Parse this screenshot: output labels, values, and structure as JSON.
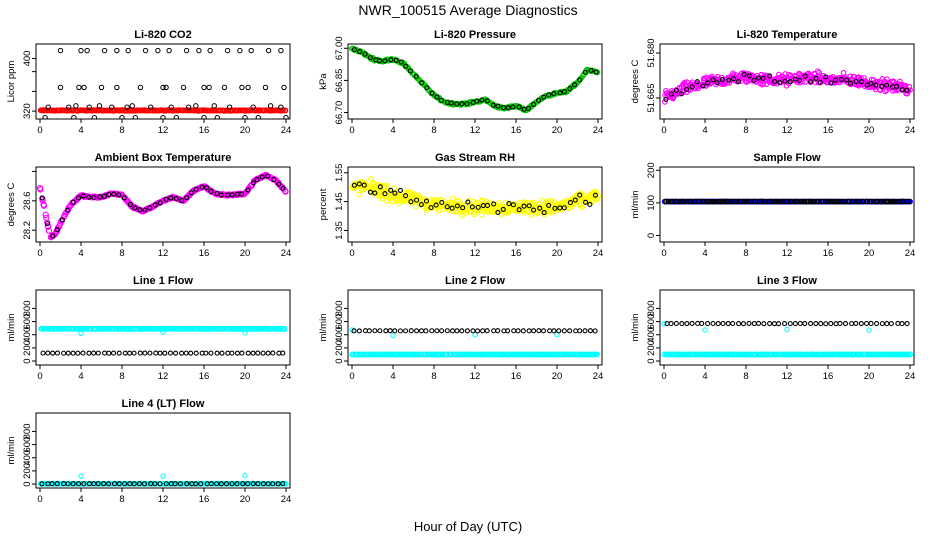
{
  "figure": {
    "title": "NWR_100515  Average Diagnostics",
    "xlabel": "Hour of Day (UTC)"
  },
  "colors": {
    "black": "#000000",
    "red": "#ff0000",
    "green": "#00cc00",
    "magenta": "#ff00ff",
    "yellow": "#ffff00",
    "cyan": "#00ffff",
    "blue": "#0000ff"
  },
  "chart_data": [
    {
      "id": "co2",
      "type": "scatter",
      "title": "Li-820 CO2",
      "ylabel": "Licor ppm",
      "xlim": [
        0,
        24
      ],
      "ylim": [
        308,
        422
      ],
      "yticks": [
        320,
        350,
        380,
        400
      ],
      "ytick_labels": [
        "320",
        "",
        "",
        "400"
      ],
      "xticks": [
        0,
        4,
        8,
        12,
        16,
        20,
        24
      ],
      "series": [
        {
          "color": "red",
          "kind": "dense",
          "base": 321,
          "noise": 1.0,
          "n": 260,
          "size": 2.3
        },
        {
          "color": "black",
          "kind": "points",
          "x": [
            0.5,
            2.0,
            3.3,
            4.0,
            4.6,
            5.3,
            6.3,
            7.5,
            8.0,
            8.6,
            9.3,
            10.3,
            11.5,
            12.0,
            12.6,
            13.3,
            14.3,
            15.5,
            16.0,
            16.6,
            17.3,
            18.3,
            19.5,
            20.0,
            20.6,
            21.3,
            22.3,
            23.5,
            24.0,
            2.0,
            3.8,
            4.3,
            6.0,
            7.5,
            9.8,
            12.0,
            12.3,
            14.0,
            16.0,
            16.5,
            18.0,
            19.7,
            20.3,
            22.0,
            23.8,
            0.8,
            2.8,
            3.5,
            4.8,
            5.8,
            7.0,
            8.5,
            9.0,
            10.8,
            12.8,
            14.5,
            15.2,
            17.0,
            18.5,
            20.8,
            22.5,
            23.5
          ],
          "y": [
            310,
            412,
            310,
            412,
            412,
            310,
            412,
            412,
            310,
            412,
            310,
            412,
            412,
            310,
            412,
            310,
            412,
            412,
            310,
            412,
            310,
            412,
            412,
            310,
            412,
            310,
            412,
            412,
            310,
            356,
            356,
            356,
            356,
            356,
            356,
            356,
            356,
            356,
            356,
            356,
            356,
            356,
            356,
            356,
            356,
            326,
            326,
            328,
            326,
            328,
            326,
            326,
            328,
            326,
            326,
            326,
            328,
            328,
            326,
            326,
            328,
            326
          ]
        }
      ]
    },
    {
      "id": "pressure",
      "type": "scatter",
      "title": "Li-820 Pressure",
      "ylabel": "kPa",
      "xlim": [
        0,
        24
      ],
      "ylim": [
        66.67,
        67.02
      ],
      "yticks": [
        66.7,
        66.85,
        67.0
      ],
      "ytick_labels": [
        "66.70",
        "66.85",
        "67.00"
      ],
      "xticks": [
        0,
        4,
        8,
        12,
        16,
        20,
        24
      ],
      "series": [
        {
          "color": "green",
          "kind": "curve",
          "noise": 0.007,
          "n": 300,
          "size": 2.3,
          "x": [
            0,
            1,
            2,
            3,
            4,
            5,
            6,
            7,
            8,
            9,
            10,
            11,
            12,
            13,
            14,
            15,
            16,
            17,
            18,
            19,
            20,
            21,
            22,
            23,
            23.8
          ],
          "y": [
            67.0,
            66.98,
            66.95,
            66.94,
            66.95,
            66.93,
            66.88,
            66.83,
            66.78,
            66.75,
            66.74,
            66.74,
            66.75,
            66.76,
            66.73,
            66.72,
            66.73,
            66.71,
            66.75,
            66.78,
            66.79,
            66.8,
            66.84,
            66.9,
            66.89
          ]
        },
        {
          "color": "black",
          "kind": "curve",
          "noise": 0.004,
          "n": 48,
          "size": 2.0,
          "x": [
            0,
            1,
            2,
            3,
            4,
            5,
            6,
            7,
            8,
            9,
            10,
            11,
            12,
            13,
            14,
            15,
            16,
            17,
            18,
            19,
            20,
            21,
            22,
            23,
            23.8
          ],
          "y": [
            67.0,
            66.98,
            66.95,
            66.94,
            66.95,
            66.93,
            66.88,
            66.83,
            66.78,
            66.75,
            66.74,
            66.74,
            66.75,
            66.76,
            66.73,
            66.72,
            66.73,
            66.71,
            66.75,
            66.78,
            66.79,
            66.8,
            66.84,
            66.9,
            66.89
          ]
        }
      ]
    },
    {
      "id": "temp",
      "type": "scatter",
      "title": "Li-820 Temperature",
      "ylabel": "degrees C",
      "xlim": [
        0,
        24
      ],
      "ylim": [
        51.658,
        51.683
      ],
      "yticks": [
        51.665,
        51.68
      ],
      "ytick_labels": [
        "51.665",
        "51.680"
      ],
      "xticks": [
        0,
        4,
        8,
        12,
        16,
        20,
        24
      ],
      "series": [
        {
          "color": "magenta",
          "kind": "curve",
          "noise": 0.0028,
          "n": 420,
          "size": 2.3,
          "x": [
            0,
            2,
            4,
            6,
            8,
            10,
            12,
            14,
            16,
            18,
            20,
            22,
            24
          ],
          "y": [
            51.665,
            51.668,
            51.67,
            51.671,
            51.672,
            51.671,
            51.671,
            51.672,
            51.671,
            51.671,
            51.67,
            51.669,
            51.668
          ]
        },
        {
          "color": "black",
          "kind": "curve",
          "noise": 0.0022,
          "n": 48,
          "size": 2.0,
          "x": [
            0,
            2,
            4,
            6,
            8,
            10,
            12,
            14,
            16,
            18,
            20,
            22,
            24
          ],
          "y": [
            51.665,
            51.668,
            51.67,
            51.671,
            51.672,
            51.671,
            51.671,
            51.672,
            51.671,
            51.671,
            51.67,
            51.669,
            51.668
          ]
        }
      ]
    },
    {
      "id": "boxtemp",
      "type": "scatter",
      "title": "Ambient Box Temperature",
      "ylabel": "degrees C",
      "xlim": [
        0,
        24
      ],
      "ylim": [
        28.04,
        29.06
      ],
      "yticks": [
        28.2,
        28.6,
        29.0
      ],
      "ytick_labels": [
        "28.2",
        "28.6",
        ""
      ],
      "xticks": [
        0,
        4,
        8,
        12,
        16,
        20,
        24
      ],
      "series": [
        {
          "color": "magenta",
          "kind": "curve",
          "noise": 0.012,
          "n": 300,
          "size": 2.6,
          "x": [
            0,
            0.5,
            1,
            1.5,
            2,
            3,
            4,
            5,
            6,
            7,
            8,
            9,
            10,
            11,
            12,
            13,
            14,
            15,
            16,
            17,
            18,
            19,
            20,
            21,
            22,
            23,
            24
          ],
          "y": [
            28.78,
            28.45,
            28.1,
            28.15,
            28.3,
            28.55,
            28.67,
            28.65,
            28.65,
            28.7,
            28.68,
            28.52,
            28.46,
            28.52,
            28.6,
            28.65,
            28.6,
            28.74,
            28.8,
            28.7,
            28.68,
            28.68,
            28.7,
            28.88,
            28.95,
            28.88,
            28.72
          ]
        },
        {
          "color": "black",
          "kind": "curve",
          "noise": 0.01,
          "n": 48,
          "size": 2.0,
          "x": [
            0,
            0.5,
            1,
            1.5,
            2,
            3,
            4,
            5,
            6,
            7,
            8,
            9,
            10,
            11,
            12,
            13,
            14,
            15,
            16,
            17,
            18,
            19,
            20,
            21,
            22,
            23,
            24
          ],
          "y": [
            28.78,
            28.45,
            28.1,
            28.15,
            28.3,
            28.55,
            28.67,
            28.65,
            28.65,
            28.7,
            28.68,
            28.52,
            28.46,
            28.52,
            28.6,
            28.65,
            28.6,
            28.74,
            28.8,
            28.7,
            28.68,
            28.68,
            28.7,
            28.88,
            28.95,
            28.88,
            28.72
          ]
        }
      ]
    },
    {
      "id": "rh",
      "type": "scatter",
      "title": "Gas Stream RH",
      "ylabel": "percent",
      "xlim": [
        0,
        24
      ],
      "ylim": [
        1.31,
        1.57
      ],
      "yticks": [
        1.35,
        1.45,
        1.55
      ],
      "ytick_labels": [
        "1.35",
        "1.45",
        "1.55"
      ],
      "xticks": [
        0,
        4,
        8,
        12,
        16,
        20,
        24
      ],
      "series": [
        {
          "color": "yellow",
          "kind": "curve",
          "noise": 0.035,
          "n": 480,
          "size": 2.3,
          "x": [
            0,
            2,
            4,
            8,
            12,
            16,
            20,
            24
          ],
          "y": [
            1.5,
            1.5,
            1.47,
            1.44,
            1.43,
            1.43,
            1.43,
            1.47
          ]
        },
        {
          "color": "black",
          "kind": "curve",
          "noise": 0.028,
          "n": 48,
          "size": 2.0,
          "x": [
            0,
            2,
            4,
            8,
            12,
            16,
            20,
            24
          ],
          "y": [
            1.5,
            1.5,
            1.47,
            1.44,
            1.43,
            1.43,
            1.43,
            1.47
          ]
        }
      ]
    },
    {
      "id": "sample",
      "type": "scatter",
      "title": "Sample Flow",
      "ylabel": "ml/min",
      "xlim": [
        0,
        24
      ],
      "ylim": [
        -20,
        210
      ],
      "yticks": [
        0,
        100,
        200
      ],
      "ytick_labels": [
        "0",
        "100",
        "200"
      ],
      "xticks": [
        0,
        4,
        8,
        12,
        16,
        20,
        24
      ],
      "series": [
        {
          "color": "blue",
          "kind": "dense",
          "base": 104,
          "noise": 0.5,
          "n": 240,
          "size": 2.3
        },
        {
          "color": "black",
          "kind": "dense",
          "base": 104,
          "noise": 0.5,
          "n": 120,
          "size": 2.2
        }
      ]
    },
    {
      "id": "line1",
      "type": "scatter",
      "title": "Line 1 Flow",
      "ylabel": "ml/min",
      "xlim": [
        0,
        24
      ],
      "ylim": [
        -60,
        1080
      ],
      "yticks": [
        0,
        200,
        400,
        600,
        800
      ],
      "ytick_labels": [
        "0",
        "200",
        "400",
        "600",
        "800"
      ],
      "xticks": [
        0,
        4,
        8,
        12,
        16,
        20,
        24
      ],
      "series": [
        {
          "color": "cyan",
          "kind": "dense",
          "base": 490,
          "noise": 5,
          "n": 240,
          "size": 2.3
        },
        {
          "color": "cyan",
          "kind": "points",
          "x": [
            4,
            12,
            20
          ],
          "y": [
            420,
            440,
            430
          ]
        },
        {
          "color": "black",
          "kind": "dense",
          "base": 120,
          "noise": 2,
          "n": 48,
          "size": 2.0
        }
      ]
    },
    {
      "id": "line2",
      "type": "scatter",
      "title": "Line 2 Flow",
      "ylabel": "ml/min",
      "xlim": [
        0,
        24
      ],
      "ylim": [
        -60,
        1080
      ],
      "yticks": [
        0,
        200,
        400,
        600,
        800
      ],
      "ytick_labels": [
        "0",
        "200",
        "400",
        "600",
        "800"
      ],
      "xticks": [
        0,
        4,
        8,
        12,
        16,
        20,
        24
      ],
      "series": [
        {
          "color": "cyan",
          "kind": "dense",
          "base": 100,
          "noise": 2,
          "n": 240,
          "size": 2.3
        },
        {
          "color": "cyan",
          "kind": "points",
          "x": [
            0,
            4,
            12,
            20
          ],
          "y": [
            470,
            390,
            400,
            400
          ]
        },
        {
          "color": "black",
          "kind": "dense",
          "base": 460,
          "noise": 3,
          "n": 48,
          "size": 2.0
        }
      ]
    },
    {
      "id": "line3",
      "type": "scatter",
      "title": "Line 3 Flow",
      "ylabel": "ml/min",
      "xlim": [
        0,
        24
      ],
      "ylim": [
        -60,
        1080
      ],
      "yticks": [
        0,
        200,
        400,
        600,
        800
      ],
      "ytick_labels": [
        "0",
        "200",
        "400",
        "600",
        "800"
      ],
      "xticks": [
        0,
        4,
        8,
        12,
        16,
        20,
        24
      ],
      "series": [
        {
          "color": "cyan",
          "kind": "dense",
          "base": 100,
          "noise": 2,
          "n": 240,
          "size": 2.3
        },
        {
          "color": "cyan",
          "kind": "points",
          "x": [
            0,
            4,
            12,
            20
          ],
          "y": [
            570,
            470,
            480,
            470
          ]
        },
        {
          "color": "black",
          "kind": "dense",
          "base": 570,
          "noise": 3,
          "n": 48,
          "size": 2.0
        }
      ]
    },
    {
      "id": "line4",
      "type": "scatter",
      "title": "Line 4 (LT) Flow",
      "ylabel": "ml/min",
      "xlim": [
        0,
        24
      ],
      "ylim": [
        -60,
        1080
      ],
      "yticks": [
        0,
        200,
        400,
        600,
        800
      ],
      "ytick_labels": [
        "0",
        "200",
        "400",
        "600",
        "800"
      ],
      "xticks": [
        0,
        4,
        8,
        12,
        16,
        20,
        24
      ],
      "series": [
        {
          "color": "cyan",
          "kind": "dense",
          "base": 5,
          "noise": 2,
          "n": 240,
          "size": 2.3
        },
        {
          "color": "cyan",
          "kind": "points",
          "x": [
            4,
            12,
            20
          ],
          "y": [
            120,
            120,
            130
          ]
        },
        {
          "color": "black",
          "kind": "dense",
          "base": 5,
          "noise": 2,
          "n": 48,
          "size": 2.0
        }
      ]
    }
  ]
}
